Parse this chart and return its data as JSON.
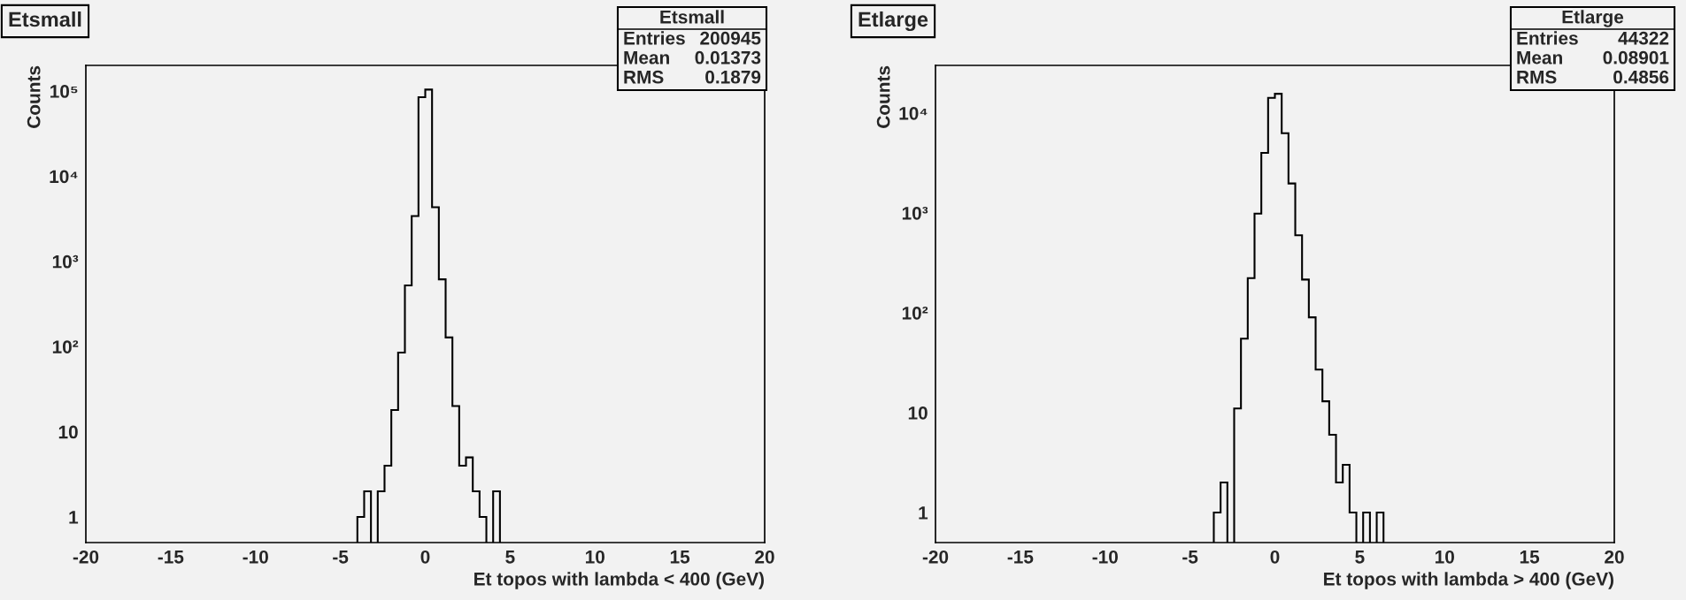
{
  "chart_data": [
    {
      "type": "histogram",
      "title": "Etsmall",
      "xlabel": "Et topos with lambda < 400 (GeV)",
      "ylabel": "Counts",
      "color": "#000000",
      "log": true,
      "bins": [
        -4.0,
        -3.6,
        -3.2,
        -2.8,
        -2.4,
        -2.0,
        -1.6,
        -1.2,
        -0.8,
        -0.4,
        0,
        0.4,
        0.8,
        1.2,
        1.6,
        2.0,
        2.4,
        2.8,
        3.2,
        3.6,
        4.0,
        4.4
      ],
      "values": [
        1,
        2,
        null,
        2,
        4,
        18,
        85,
        523,
        3400,
        84700,
        104000,
        4320,
        616,
        128,
        20,
        4,
        5,
        2,
        1,
        null,
        2
      ],
      "xlim": [
        -20,
        20
      ],
      "xticks": [
        -20,
        -15,
        -10,
        -5,
        0,
        5,
        10,
        15,
        20
      ],
      "ylim": [
        0.5,
        200000
      ],
      "yticks": [
        1,
        10,
        {
          "value": 100,
          "label": "10²"
        },
        {
          "value": 1000,
          "label": "10³"
        },
        {
          "value": 10000,
          "label": "10⁴"
        },
        {
          "value": 100000,
          "label": "10⁵"
        }
      ],
      "annotations": [
        "Etsmall",
        "Entries\t200945",
        "Mean\t0.01373",
        "RMS\t0.1879"
      ]
    },
    {
      "type": "histogram",
      "title": "Etlarge",
      "xlabel": "Et topos with lambda > 400 (GeV)",
      "ylabel": "Counts",
      "color": "#000000",
      "log": true,
      "bins": [
        -3.6,
        -3.2,
        -2.8,
        -2.4,
        -2.0,
        -1.6,
        -1.2,
        -0.8,
        -0.4,
        0,
        0.4,
        0.8,
        1.2,
        1.6,
        2.0,
        2.4,
        2.8,
        3.2,
        3.6,
        4.0,
        4.4,
        4.8,
        5.2,
        5.6,
        6.0,
        6.4
      ],
      "values": [
        1,
        2,
        null,
        11,
        55,
        222,
        982,
        3990,
        14200,
        15600,
        6280,
        1970,
        597,
        215,
        90,
        27,
        13,
        6,
        2,
        3,
        1,
        null,
        1,
        null,
        1
      ],
      "xlim": [
        -20,
        20
      ],
      "xticks": [
        -20,
        -15,
        -10,
        -5,
        0,
        5,
        10,
        15,
        20
      ],
      "ylim": [
        0.5,
        30000
      ],
      "yticks": [
        1,
        10,
        {
          "value": 100,
          "label": "10²"
        },
        {
          "value": 1000,
          "label": "10³"
        },
        {
          "value": 10000,
          "label": "10⁴"
        }
      ],
      "annotations": [
        "Etlarge",
        "Entries\t44322",
        "Mean\t0.08901",
        "RMS\t0.4856"
      ]
    }
  ]
}
